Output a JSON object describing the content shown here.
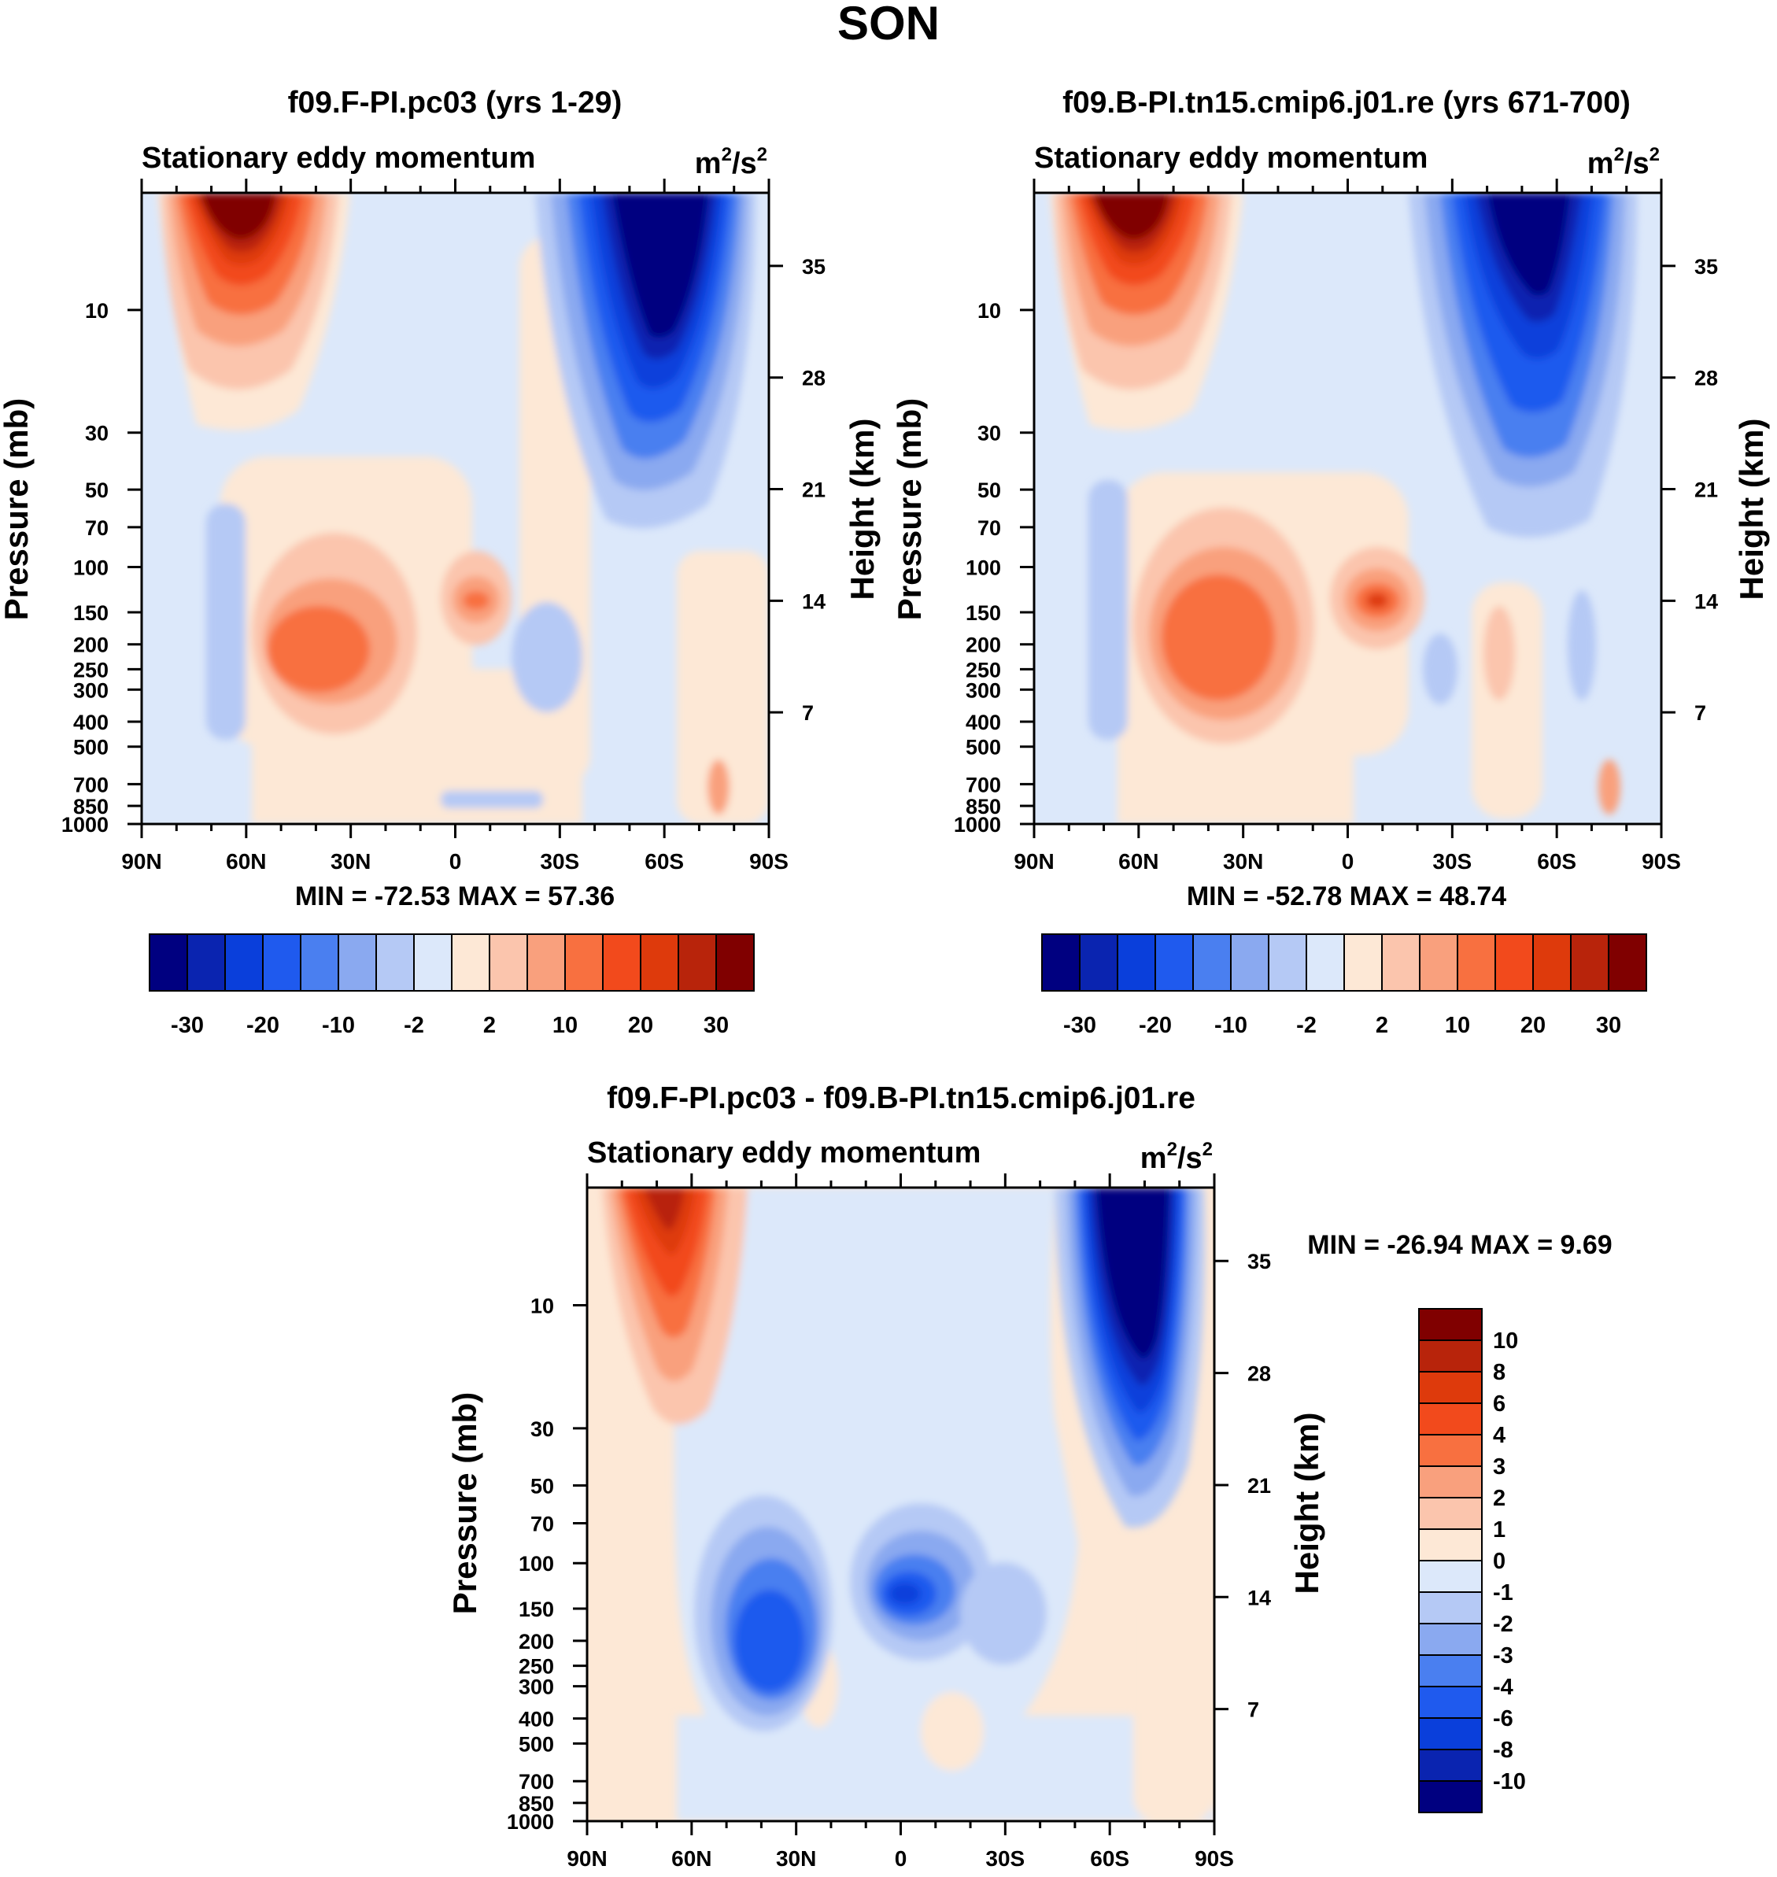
{
  "page_title": "SON",
  "colors": {
    "main_scale": [
      "#000080",
      "#0a24b0",
      "#0a3fdb",
      "#1f5aee",
      "#4a7ff0",
      "#8aa9f0",
      "#b5c9f5",
      "#dce8fa",
      "#fde8d6",
      "#fbc5ad",
      "#f9a07d",
      "#f87040",
      "#f24a1c",
      "#de3a0c",
      "#b8240b",
      "#800000"
    ],
    "diff_scale": [
      "#000080",
      "#0a24b0",
      "#0a3fdb",
      "#1f5aee",
      "#4a7ff0",
      "#8aa9f0",
      "#b5c9f5",
      "#dce8fa",
      "#fde8d6",
      "#fbc5ad",
      "#f9a07d",
      "#f87040",
      "#f24a1c",
      "#de3a0c",
      "#b8240b",
      "#800000"
    ]
  },
  "chart_data": [
    {
      "type": "heatmap",
      "panel": "top-left",
      "title": "f09.F-PI.pc03 (yrs 1-29)",
      "subtitle": "Stationary eddy momentum",
      "units_base": "m",
      "units_mid": "/s",
      "units_sup": "2",
      "ylabel_left": "Pressure (mb)",
      "ylabel_right": "Height (km)",
      "x_ticks": [
        "90N",
        "60N",
        "30N",
        "0",
        "30S",
        "60S",
        "90S"
      ],
      "y_ticks_left": [
        "10",
        "30",
        "50",
        "70",
        "100",
        "150",
        "200",
        "250",
        "300",
        "400",
        "500",
        "700",
        "850",
        "1000"
      ],
      "y_ticks_right": [
        "35",
        "28",
        "21",
        "14",
        "7"
      ],
      "stats": "MIN = -72.53  MAX =  57.36",
      "colorbar_labels": [
        "-30",
        "-20",
        "-10",
        "-2",
        "2",
        "10",
        "20",
        "30"
      ],
      "features": [
        {
          "lat": 62,
          "p": 5,
          "value": 57.36
        },
        {
          "lat": -62,
          "p": 8,
          "value": -72.53
        },
        {
          "lat": 30,
          "p": 220,
          "value": 15
        },
        {
          "lat": -7,
          "p": 150,
          "value": 12
        }
      ]
    },
    {
      "type": "heatmap",
      "panel": "top-right",
      "title": "f09.B-PI.tn15.cmip6.j01.re (yrs 671-700)",
      "subtitle": "Stationary eddy momentum",
      "units_base": "m",
      "units_mid": "/s",
      "units_sup": "2",
      "ylabel_left": "Pressure (mb)",
      "ylabel_right": "Height (km)",
      "x_ticks": [
        "90N",
        "60N",
        "30N",
        "0",
        "30S",
        "60S",
        "90S"
      ],
      "y_ticks_left": [
        "10",
        "30",
        "50",
        "70",
        "100",
        "150",
        "200",
        "250",
        "300",
        "400",
        "500",
        "700",
        "850",
        "1000"
      ],
      "y_ticks_right": [
        "35",
        "28",
        "21",
        "14",
        "7"
      ],
      "stats": "MIN = -52.78  MAX =  48.74",
      "colorbar_labels": [
        "-30",
        "-20",
        "-10",
        "-2",
        "2",
        "10",
        "20",
        "30"
      ],
      "features": [
        {
          "lat": 62,
          "p": 5,
          "value": 48.74
        },
        {
          "lat": -58,
          "p": 8,
          "value": -52.78
        },
        {
          "lat": 30,
          "p": 200,
          "value": 18
        },
        {
          "lat": -5,
          "p": 150,
          "value": 20
        }
      ]
    },
    {
      "type": "heatmap",
      "panel": "bottom",
      "title": "f09.F-PI.pc03 - f09.B-PI.tn15.cmip6.j01.re",
      "subtitle": "Stationary eddy momentum",
      "units_base": "m",
      "units_mid": "/s",
      "units_sup": "2",
      "ylabel_left": "Pressure (mb)",
      "ylabel_right": "Height (km)",
      "x_ticks": [
        "90N",
        "60N",
        "30N",
        "0",
        "30S",
        "60S",
        "90S"
      ],
      "y_ticks_left": [
        "10",
        "30",
        "50",
        "70",
        "100",
        "150",
        "200",
        "250",
        "300",
        "400",
        "500",
        "700",
        "850",
        "1000"
      ],
      "y_ticks_right": [
        "35",
        "28",
        "21",
        "14",
        "7"
      ],
      "stats": "MIN = -26.94  MAX =   9.69",
      "colorbar_labels": [
        "10",
        "8",
        "6",
        "4",
        "3",
        "2",
        "1",
        "0",
        "-1",
        "-2",
        "-3",
        "-4",
        "-6",
        "-8",
        "-10"
      ],
      "features": [
        {
          "lat": 67,
          "p": 6,
          "value": 9.69
        },
        {
          "lat": -68,
          "p": 10,
          "value": -26.94
        },
        {
          "lat": 33,
          "p": 230,
          "value": -5
        },
        {
          "lat": 0,
          "p": 150,
          "value": -6
        }
      ]
    }
  ]
}
